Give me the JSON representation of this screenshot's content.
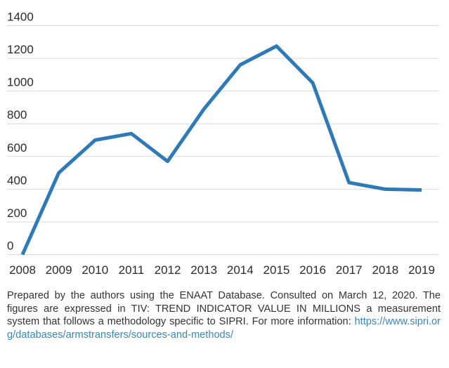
{
  "chart_data": {
    "type": "line",
    "title": "",
    "xlabel": "",
    "ylabel": "",
    "categories": [
      "2008",
      "2009",
      "2010",
      "2011",
      "2012",
      "2013",
      "2014",
      "2015",
      "2016",
      "2017",
      "2018",
      "2019"
    ],
    "series": [
      {
        "values": [
          0,
          500,
          700,
          740,
          570,
          890,
          1160,
          1275,
          1050,
          440,
          400,
          395
        ]
      }
    ],
    "ylim": [
      0,
      1400
    ],
    "yticks": [
      "0",
      "200",
      "400",
      "600",
      "800",
      "1000",
      "1200",
      "1400"
    ],
    "grid": true,
    "line_color": "#2e7ab8",
    "grid_color": "#d9d9d9"
  },
  "caption": {
    "text": "Prepared by the authors using the ENAAT Database. Consulted on March 12, 2020. The figures are expressed in TIV: TREND INDICATOR VALUE IN MILLIONS a measurement system that follows a methodology specific to SIPRI. For more information: ",
    "link_text": "https://www.sipri.org/databases/armstransfers/sources-and-methods/"
  }
}
